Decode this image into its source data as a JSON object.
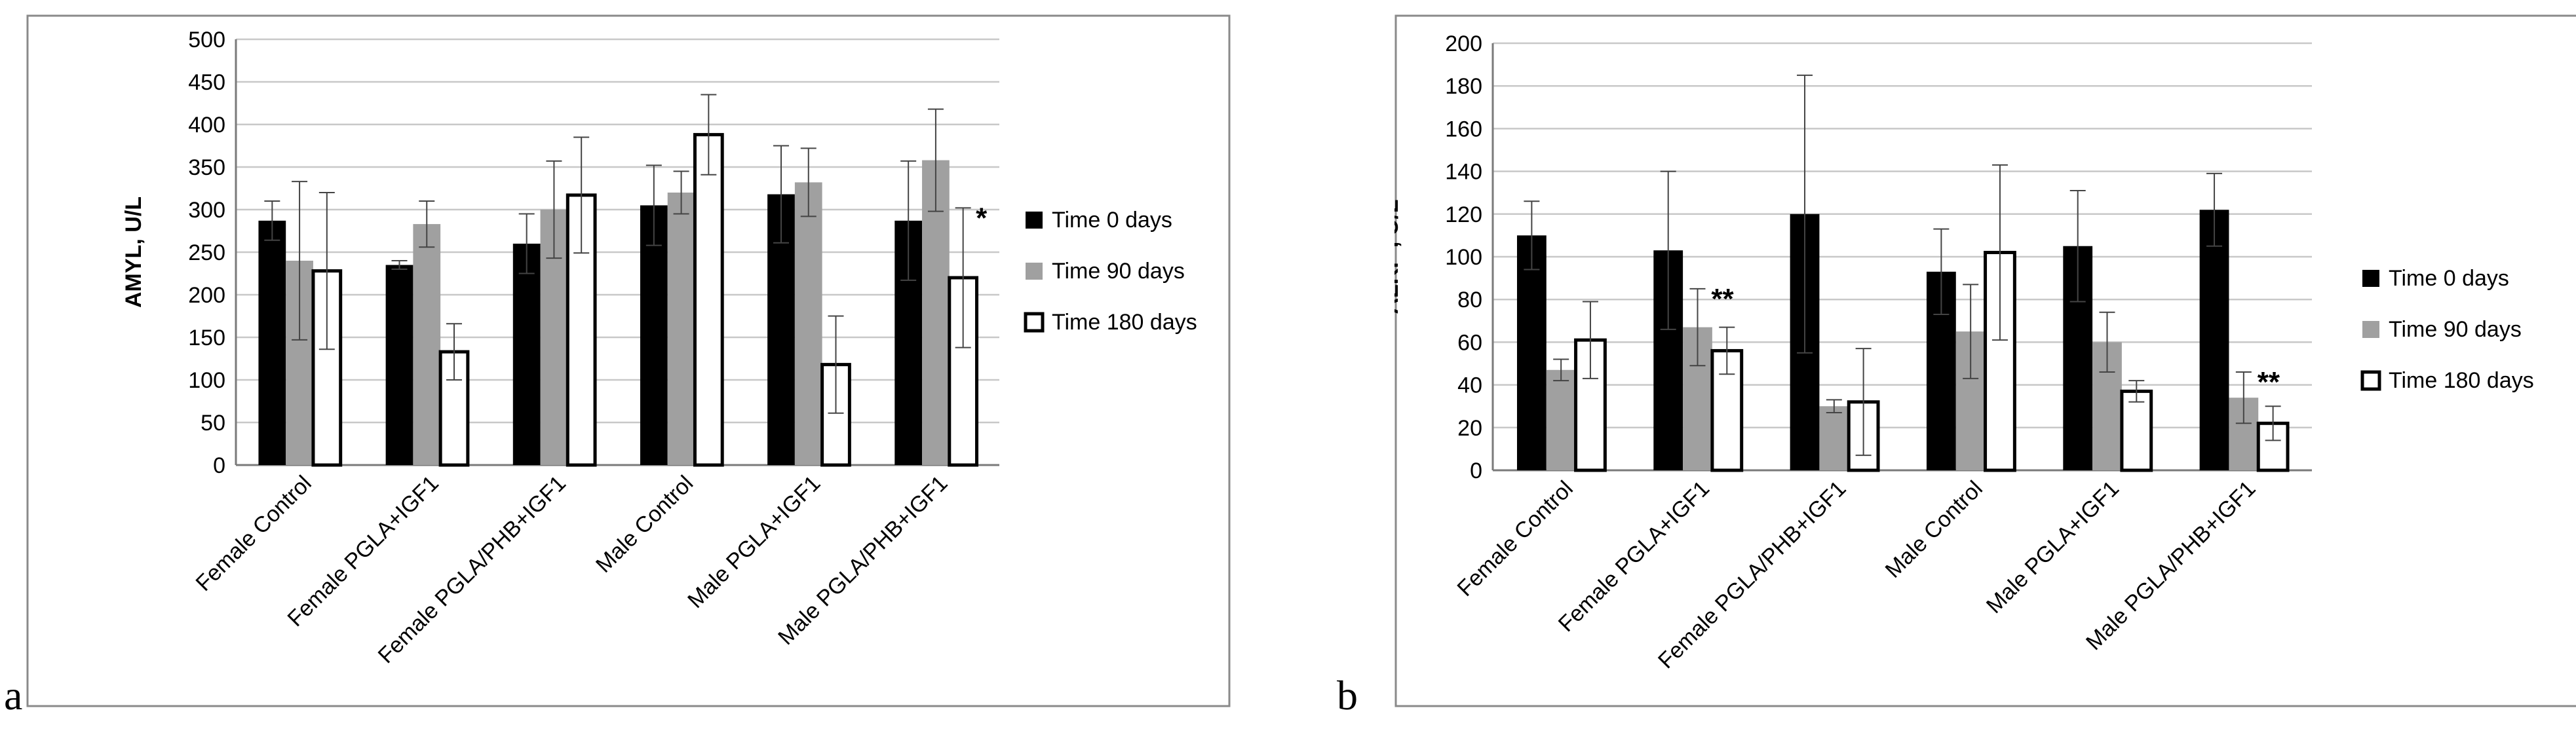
{
  "panel_labels": [
    "a",
    "b"
  ],
  "colors": {
    "series": [
      "#000000",
      "#a0a0a0",
      "#ffffff"
    ],
    "outline": "#000000",
    "grid": "#c8c8c8"
  },
  "chart_data": [
    {
      "type": "bar",
      "title": "",
      "xlabel": "",
      "ylabel": "AMYL, U/L",
      "ylim": [
        0,
        500
      ],
      "yticks": [
        0,
        50,
        100,
        150,
        200,
        250,
        300,
        350,
        400,
        450,
        500
      ],
      "grid": true,
      "legend_position": "right",
      "categories": [
        "Female Control",
        "Female PGLA+IGF1",
        "Female PGLA/PHB+IGF1",
        "Male Control",
        "Male PGLA+IGF1",
        "Male PGLA/PHB+IGF1"
      ],
      "series": [
        {
          "name": "Time 0 days",
          "values": [
            287,
            235,
            260,
            305,
            318,
            287
          ],
          "errors": [
            23,
            5,
            35,
            47,
            57,
            70
          ]
        },
        {
          "name": "Time 90 days",
          "values": [
            240,
            283,
            300,
            320,
            332,
            358
          ],
          "errors": [
            93,
            27,
            57,
            25,
            40,
            60
          ]
        },
        {
          "name": "Time 180 days",
          "values": [
            228,
            133,
            317,
            388,
            118,
            220
          ],
          "errors": [
            92,
            33,
            68,
            47,
            57,
            82
          ]
        }
      ],
      "annotations": [
        {
          "category": 5,
          "series": 2,
          "text": "*"
        }
      ]
    },
    {
      "type": "bar",
      "title": "",
      "xlabel": "",
      "ylabel": "ALKP , U/L",
      "ylim": [
        0,
        200
      ],
      "yticks": [
        0,
        20,
        40,
        60,
        80,
        100,
        120,
        140,
        160,
        180,
        200
      ],
      "grid": true,
      "legend_position": "right",
      "categories": [
        "Female Control",
        "Female PGLA+IGF1",
        "Female PGLA/PHB+IGF1",
        "Male Control",
        "Male PGLA+IGF1",
        "Male PGLA/PHB+IGF1"
      ],
      "series": [
        {
          "name": "Time 0 days",
          "values": [
            110,
            103,
            120,
            93,
            105,
            122
          ],
          "errors": [
            16,
            37,
            65,
            20,
            26,
            17
          ]
        },
        {
          "name": "Time 90 days",
          "values": [
            47,
            67,
            30,
            65,
            60,
            34
          ],
          "errors": [
            5,
            18,
            3,
            22,
            14,
            12
          ]
        },
        {
          "name": "Time 180 days",
          "values": [
            61,
            56,
            32,
            102,
            37,
            22
          ],
          "errors": [
            18,
            11,
            25,
            41,
            5,
            8
          ]
        }
      ],
      "annotations": [
        {
          "category": 1,
          "series": 1,
          "text": "**"
        },
        {
          "category": 5,
          "series": 1,
          "text": "**"
        }
      ]
    }
  ]
}
